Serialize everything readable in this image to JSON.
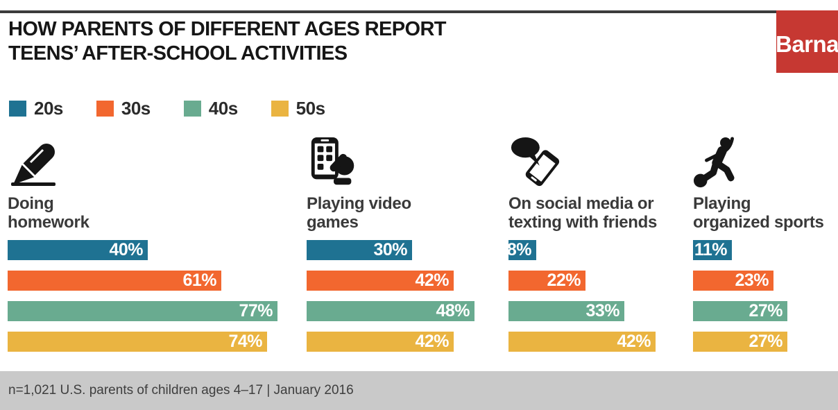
{
  "header": {
    "title": "HOW PARENTS OF DIFFERENT AGES REPORT\nTEENS’ AFTER-SCHOOL ACTIVITIES",
    "logo_text": "Barna",
    "brand_red": "#C63832",
    "rule_color": "#3C3C3C"
  },
  "legend": [
    {
      "label": "20s",
      "color": "#1F7292"
    },
    {
      "label": "30s",
      "color": "#F2672F"
    },
    {
      "label": "40s",
      "color": "#69AB90"
    },
    {
      "label": "50s",
      "color": "#EAB441"
    }
  ],
  "chart_data": {
    "type": "bar",
    "orientation": "horizontal",
    "title": "How parents of different ages report teens' after-school activities",
    "categories": [
      "Doing homework",
      "Playing video games",
      "On social media or texting with friends",
      "Playing organized sports"
    ],
    "series": [
      {
        "name": "20s",
        "color": "#1F7292",
        "values": [
          40,
          30,
          8,
          11
        ]
      },
      {
        "name": "30s",
        "color": "#F2672F",
        "values": [
          61,
          42,
          22,
          23
        ]
      },
      {
        "name": "40s",
        "color": "#69AB90",
        "values": [
          77,
          48,
          33,
          27
        ]
      },
      {
        "name": "50s",
        "color": "#EAB441",
        "values": [
          74,
          42,
          42,
          27
        ]
      }
    ],
    "unit": "%",
    "value_labels_shown": true,
    "axis_range": [
      0,
      100
    ],
    "grid": false,
    "legend_position": "top-left"
  },
  "columns": [
    {
      "icon": "pencil-icon",
      "label": "Doing\nhomework"
    },
    {
      "icon": "video-game-phone-icon",
      "label": "Playing video\ngames"
    },
    {
      "icon": "chat-bubble-phone-icon",
      "label": "On social media or\ntexting with friends"
    },
    {
      "icon": "soccer-player-icon",
      "label": "Playing\norganized sports"
    }
  ],
  "footer": {
    "text": "n=1,021 U.S. parents of children ages 4–17 | January 2016",
    "background": "#C9C9C9"
  }
}
